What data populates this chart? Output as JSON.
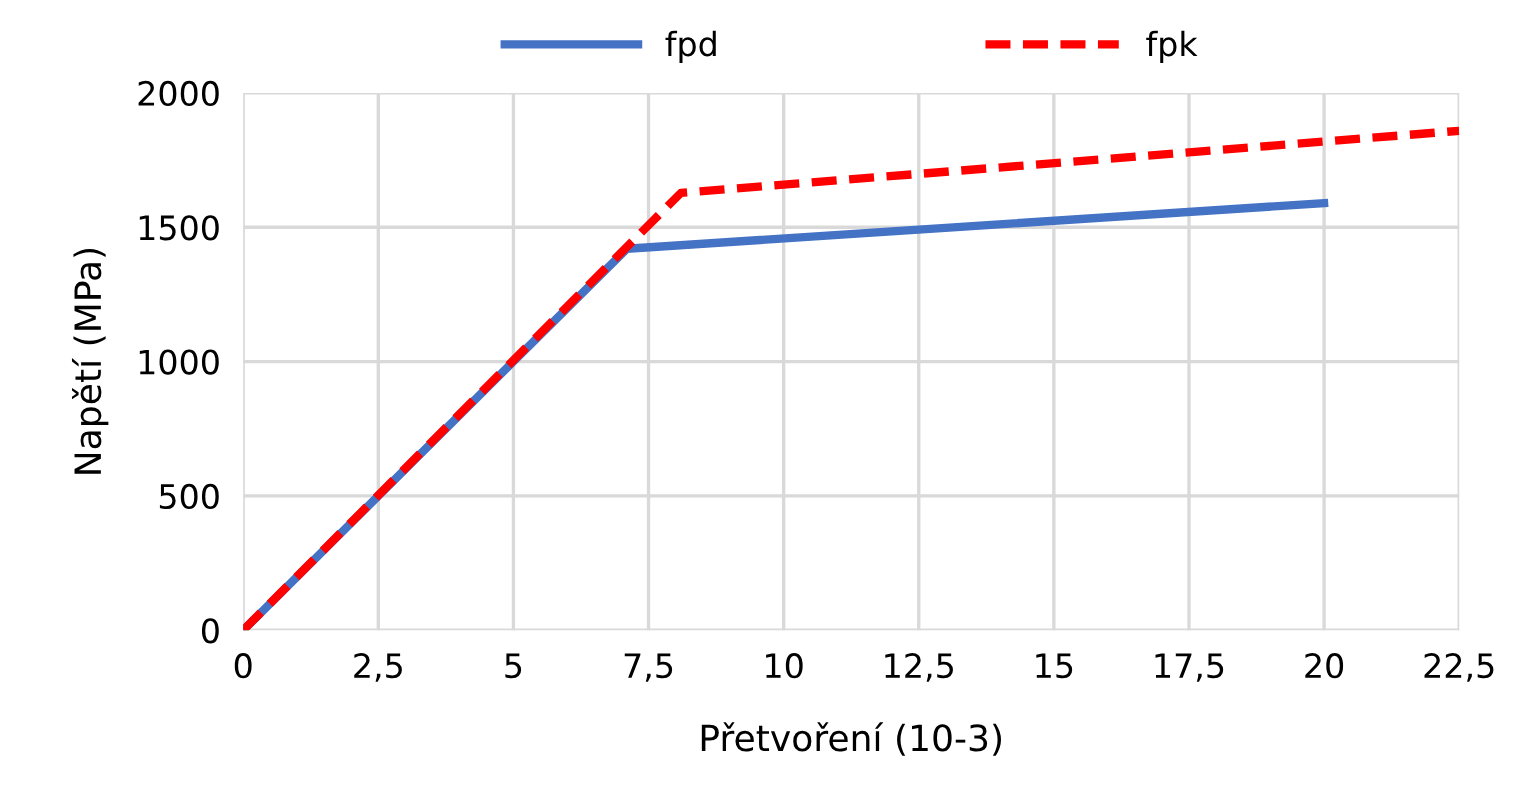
{
  "chart_data": {
    "type": "line",
    "xlabel": "Přetvoření (10-3)",
    "ylabel": "Napětí (MPa)",
    "xlim": [
      0,
      22.5
    ],
    "xticks": [
      0,
      {
        "value": 2.5,
        "label": "2,5"
      },
      5,
      {
        "value": 7.5,
        "label": "7,5"
      },
      10,
      {
        "value": 12.5,
        "label": "12,5"
      },
      15,
      {
        "value": 17.5,
        "label": "17,5"
      },
      20,
      {
        "value": 22.5,
        "label": "22,5"
      }
    ],
    "ylim": [
      0,
      2000
    ],
    "yticks": [
      0,
      500,
      1000,
      1500,
      2000
    ],
    "grid": true,
    "legend": "top",
    "marker": "none",
    "series": [
      {
        "name": "fpd",
        "color": "#4472c4",
        "line_style": "solid",
        "x": [
          0,
          7.1,
          20
        ],
        "values": [
          0,
          1420,
          1590
        ]
      },
      {
        "name": "fpk",
        "color": "#ff0000",
        "line_style": "dashed",
        "x": [
          0,
          8.1,
          22.5
        ],
        "values": [
          0,
          1628,
          1859
        ]
      }
    ]
  }
}
